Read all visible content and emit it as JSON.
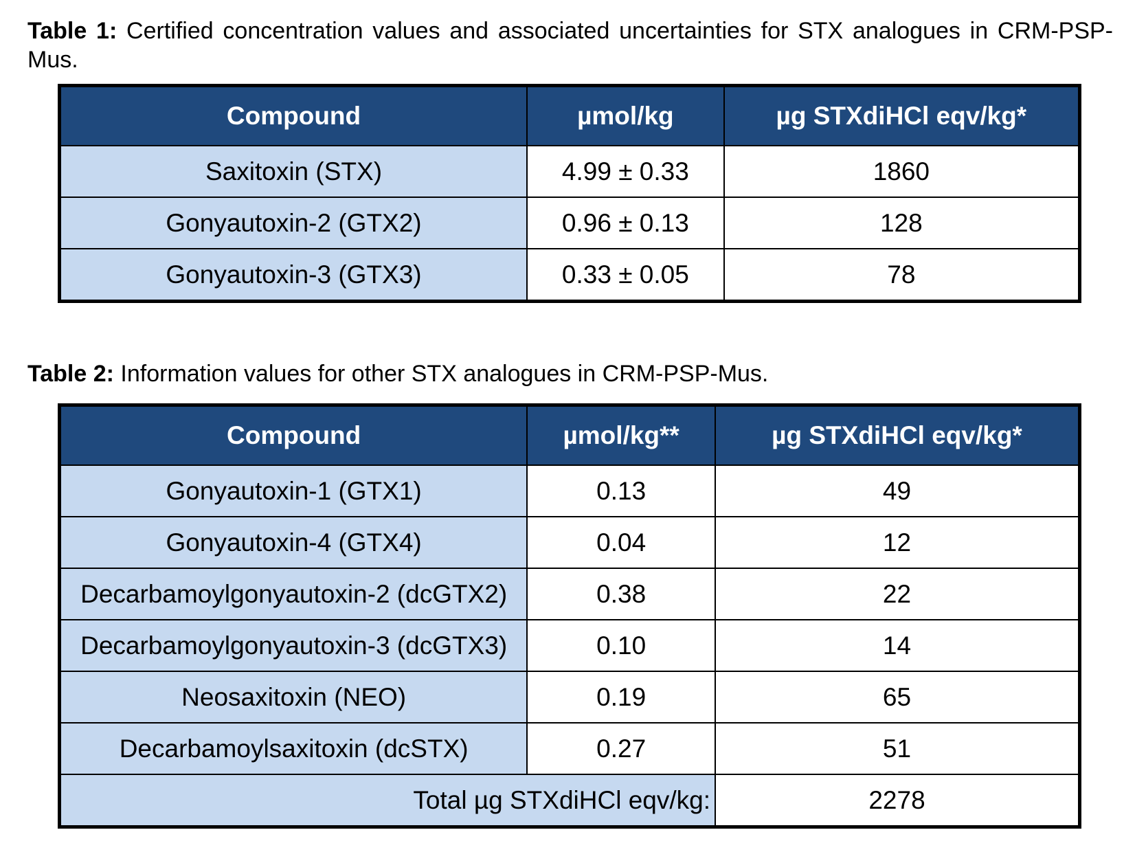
{
  "table1": {
    "caption_label": "Table 1:",
    "caption_text": "Certified concentration values and associated uncertainties for STX analogues in CRM-PSP-Mus.",
    "headers": [
      "Compound",
      "µmol/kg",
      "µg STXdiHCl eqv/kg*"
    ],
    "rows": [
      [
        "Saxitoxin (STX)",
        "4.99 ± 0.33",
        "1860"
      ],
      [
        "Gonyautoxin-2 (GTX2)",
        "0.96 ± 0.13",
        "128"
      ],
      [
        "Gonyautoxin-3 (GTX3)",
        "0.33 ± 0.05",
        "78"
      ]
    ]
  },
  "table2": {
    "caption_label": "Table 2:",
    "caption_text": "Information values for other STX analogues in CRM-PSP-Mus.",
    "headers": [
      "Compound",
      "µmol/kg**",
      "µg STXdiHCl eqv/kg*"
    ],
    "rows": [
      [
        "Gonyautoxin-1 (GTX1)",
        "0.13",
        "49"
      ],
      [
        "Gonyautoxin-4 (GTX4)",
        "0.04",
        "12"
      ],
      [
        "Decarbamoylgonyautoxin-2 (dcGTX2)",
        "0.38",
        "22"
      ],
      [
        "Decarbamoylgonyautoxin-3 (dcGTX3)",
        "0.10",
        "14"
      ],
      [
        "Neosaxitoxin (NEO)",
        "0.19",
        "65"
      ],
      [
        "Decarbamoylsaxitoxin (dcSTX)",
        "0.27",
        "51"
      ]
    ],
    "total_label": "Total µg STXdiHCl eqv/kg:",
    "total_value": "2278"
  },
  "colors": {
    "header_bg": "#1f497d",
    "compound_bg": "#c6d9f0"
  }
}
